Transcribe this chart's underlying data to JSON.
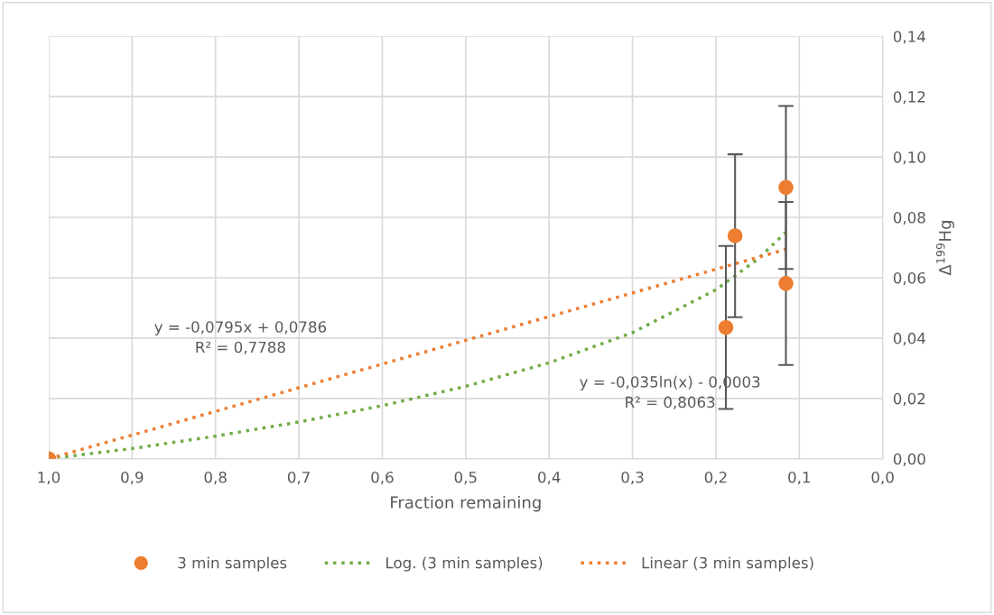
{
  "chart_data": {
    "type": "scatter",
    "xlabel": "Fraction remaining",
    "y2label": "Δ$^{199}$Hg",
    "xlim": [
      1.0,
      0.0
    ],
    "xticks": [
      {
        "value": 1.0,
        "label": "1,0"
      },
      {
        "value": 0.9,
        "label": "0,9"
      },
      {
        "value": 0.8,
        "label": "0,8"
      },
      {
        "value": 0.7,
        "label": "0,7"
      },
      {
        "value": 0.6,
        "label": "0,6"
      },
      {
        "value": 0.5,
        "label": "0,5"
      },
      {
        "value": 0.4,
        "label": "0,4"
      },
      {
        "value": 0.3,
        "label": "0,3"
      },
      {
        "value": 0.2,
        "label": "0,2"
      },
      {
        "value": 0.1,
        "label": "0,1"
      },
      {
        "value": 0.0,
        "label": "0,0"
      }
    ],
    "y2lim": [
      0,
      0.14
    ],
    "y2ticks": [
      {
        "value": 0,
        "label": "0,00"
      },
      {
        "value": 0.02,
        "label": "0,02"
      },
      {
        "value": 0.04,
        "label": "0,04"
      },
      {
        "value": 0.06,
        "label": "0,06"
      },
      {
        "value": 0.08,
        "label": "0,08"
      },
      {
        "value": 0.1,
        "label": "0,10"
      },
      {
        "value": 0.12,
        "label": "0,12"
      },
      {
        "value": 0.14,
        "label": "0,14"
      }
    ],
    "grid": true,
    "legend": "bottom",
    "series": [
      {
        "name": "3 min samples",
        "axis": "y2",
        "marker": "circle",
        "color": "#ed7d31",
        "x": [
          1.0,
          0.188,
          0.177,
          0.116,
          0.116
        ],
        "values": [
          0,
          0.0435,
          0.0739,
          0.0899,
          0.0581
        ],
        "errors": [
          null,
          0.027,
          0.027,
          0.027,
          0.027
        ]
      },
      {
        "name": "Log. (3 min samples)",
        "type": "line",
        "axis": "y2",
        "marker": "none",
        "line_style": "dotted",
        "color": "#70ad47",
        "x": [
          1.0,
          0.9,
          0.8,
          0.7,
          0.6,
          0.5,
          0.4,
          0.3,
          0.2,
          0.15,
          0.116
        ],
        "values": [
          0,
          0.0034,
          0.0075,
          0.0122,
          0.0176,
          0.024,
          0.0318,
          0.0418,
          0.056,
          0.0661,
          0.0751
        ]
      },
      {
        "name": "Linear (3 min samples)",
        "type": "line",
        "axis": "y2",
        "marker": "none",
        "line_style": "dotted",
        "color": "#ed7d31",
        "x": [
          1.0,
          0.116
        ],
        "values": [
          0,
          0.0694
        ]
      }
    ],
    "annotations": [
      "y = -0,0795x + 0,0786\nR² = 0,7788",
      "y = -0,035ln(x) - 0,0003\nR² = 0,8063"
    ]
  }
}
